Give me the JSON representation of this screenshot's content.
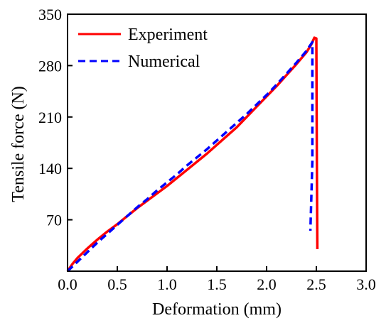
{
  "chart_data": {
    "type": "line",
    "title": "",
    "xlabel": "Deformation (mm)",
    "ylabel": "Tensile force (N)",
    "xlim": [
      0.0,
      3.0
    ],
    "ylim": [
      0,
      350
    ],
    "xticks": [
      "0.0",
      "0.5",
      "1.0",
      "1.5",
      "2.0",
      "2.5",
      "3.0"
    ],
    "yticks": [
      "70",
      "140",
      "210",
      "280",
      "350"
    ],
    "grid": false,
    "legend_position": "top-left",
    "series": [
      {
        "name": "Experiment",
        "color": "#ff0000",
        "style": "solid",
        "x": [
          0.0,
          0.05,
          0.1,
          0.2,
          0.3,
          0.4,
          0.5,
          0.6,
          0.7,
          0.8,
          0.9,
          1.0,
          1.1,
          1.2,
          1.3,
          1.4,
          1.5,
          1.6,
          1.7,
          1.8,
          1.9,
          2.0,
          2.1,
          2.2,
          2.3,
          2.4,
          2.45,
          2.48,
          2.5,
          2.505,
          2.51
        ],
        "y": [
          0,
          10,
          18,
          31,
          43,
          54,
          64,
          75,
          86,
          96,
          106,
          116,
          127,
          138,
          149,
          160,
          172,
          184,
          196,
          210,
          224,
          238,
          252,
          267,
          282,
          298,
          309,
          318,
          317,
          150,
          30
        ]
      },
      {
        "name": "Numerical",
        "color": "#0000ff",
        "style": "dashed",
        "x": [
          0.0,
          0.1,
          0.2,
          0.3,
          0.4,
          0.5,
          0.6,
          0.7,
          0.8,
          0.9,
          1.0,
          1.1,
          1.2,
          1.3,
          1.4,
          1.5,
          1.6,
          1.7,
          1.8,
          1.9,
          2.0,
          2.1,
          2.2,
          2.3,
          2.4,
          2.46,
          2.46,
          2.44
        ],
        "y": [
          0,
          13,
          26,
          39,
          51,
          63,
          75,
          87,
          98,
          110,
          121,
          132,
          144,
          155,
          166,
          178,
          190,
          202,
          214,
          227,
          240,
          254,
          269,
          284,
          300,
          312,
          150,
          55
        ]
      }
    ]
  }
}
